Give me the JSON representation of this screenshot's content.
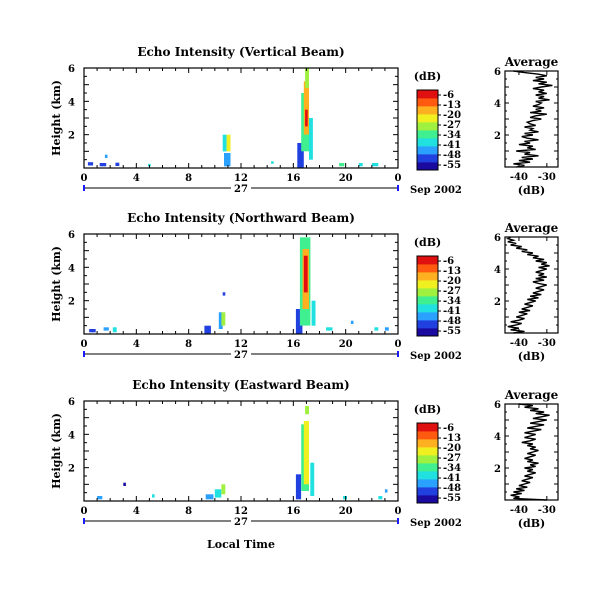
{
  "panels": [
    {
      "title": "Echo Intensity (Vertical Beam)",
      "ylabel": "Height (km)",
      "yticks": [
        "2",
        "4",
        "6"
      ],
      "xticks": [
        "0",
        "4",
        "8",
        "12",
        "16",
        "20",
        "0"
      ],
      "date_day": "27",
      "date_month": "Sep 2002",
      "colorbar_unit": "(dB)",
      "colorbar_ticks": [
        "-6",
        "-13",
        "-20",
        "-27",
        "-34",
        "-41",
        "-48",
        "-55"
      ],
      "avg_title": "Average",
      "avg_yticks": [
        "2",
        "4",
        "6"
      ],
      "avg_xticks": [
        "-40",
        "-30"
      ],
      "avg_xlabel": "(dB)"
    },
    {
      "title": "Echo Intensity (Northward Beam)",
      "ylabel": "Height (km)",
      "yticks": [
        "2",
        "4",
        "6"
      ],
      "xticks": [
        "0",
        "4",
        "8",
        "12",
        "16",
        "20",
        "0"
      ],
      "date_day": "27",
      "date_month": "Sep 2002",
      "colorbar_unit": "(dB)",
      "colorbar_ticks": [
        "-6",
        "-13",
        "-20",
        "-27",
        "-34",
        "-41",
        "-48",
        "-55"
      ],
      "avg_title": "Average",
      "avg_yticks": [
        "2",
        "4",
        "6"
      ],
      "avg_xticks": [
        "-40",
        "-30"
      ],
      "avg_xlabel": "(dB)"
    },
    {
      "title": "Echo Intensity (Eastward Beam)",
      "ylabel": "Height (km)",
      "yticks": [
        "2",
        "4",
        "6"
      ],
      "xticks": [
        "0",
        "4",
        "8",
        "12",
        "16",
        "20",
        "0"
      ],
      "date_day": "27",
      "date_month": "Sep 2002",
      "colorbar_unit": "(dB)",
      "colorbar_ticks": [
        "-6",
        "-13",
        "-20",
        "-27",
        "-34",
        "-41",
        "-48",
        "-55"
      ],
      "avg_title": "Average",
      "avg_yticks": [
        "2",
        "4",
        "6"
      ],
      "avg_xticks": [
        "-40",
        "-30"
      ],
      "avg_xlabel": "(dB)"
    }
  ],
  "xlabel": "Local Time",
  "colormap": [
    "#1a0aa0",
    "#2040e0",
    "#2aa0ff",
    "#20e0e0",
    "#40f090",
    "#a0f040",
    "#f0f020",
    "#ffb020",
    "#ff5a10",
    "#e01010"
  ],
  "chart_data": [
    {
      "type": "heatmap",
      "title": "Echo Intensity (Vertical Beam)",
      "xlabel": "Local Time",
      "ylabel": "Height (km)",
      "xlim": [
        0,
        24
      ],
      "ylim": [
        0,
        6
      ],
      "clim": [
        -55,
        -6
      ],
      "z_unit": "dB",
      "cells": [
        {
          "x": 0.3,
          "y": 0.15,
          "dx": 0.4,
          "dy": 0.2,
          "v": -50
        },
        {
          "x": 1.2,
          "y": 0.1,
          "dx": 0.5,
          "dy": 0.2,
          "v": -48
        },
        {
          "x": 1.6,
          "y": 0.6,
          "dx": 0.2,
          "dy": 0.2,
          "v": -42
        },
        {
          "x": 2.4,
          "y": 0.12,
          "dx": 0.3,
          "dy": 0.2,
          "v": -46
        },
        {
          "x": 4.9,
          "y": 0.1,
          "dx": 0.2,
          "dy": 0.15,
          "v": -36
        },
        {
          "x": 10.6,
          "y": 1.0,
          "dx": 0.3,
          "dy": 1.0,
          "v": -40
        },
        {
          "x": 10.9,
          "y": 1.0,
          "dx": 0.3,
          "dy": 1.0,
          "v": -22
        },
        {
          "x": 10.7,
          "y": 0.1,
          "dx": 0.5,
          "dy": 0.8,
          "v": -45
        },
        {
          "x": 14.3,
          "y": 0.25,
          "dx": 0.2,
          "dy": 0.15,
          "v": -40
        },
        {
          "x": 16.3,
          "y": 0.0,
          "dx": 0.5,
          "dy": 1.5,
          "v": -50
        },
        {
          "x": 16.6,
          "y": 1.0,
          "dx": 0.6,
          "dy": 3.5,
          "v": -32
        },
        {
          "x": 16.8,
          "y": 2.0,
          "dx": 0.4,
          "dy": 3.2,
          "v": -18
        },
        {
          "x": 16.9,
          "y": 4.8,
          "dx": 0.3,
          "dy": 1.2,
          "v": -28
        },
        {
          "x": 16.9,
          "y": 2.5,
          "dx": 0.2,
          "dy": 1.0,
          "v": -9
        },
        {
          "x": 17.2,
          "y": 0.5,
          "dx": 0.3,
          "dy": 2.5,
          "v": -38
        },
        {
          "x": 19.5,
          "y": 0.1,
          "dx": 0.4,
          "dy": 0.2,
          "v": -34
        },
        {
          "x": 21.0,
          "y": 0.1,
          "dx": 0.3,
          "dy": 0.2,
          "v": -40
        },
        {
          "x": 22.0,
          "y": 0.1,
          "dx": 0.5,
          "dy": 0.2,
          "v": -36
        }
      ]
    },
    {
      "type": "heatmap",
      "title": "Echo Intensity (Northward Beam)",
      "xlabel": "Local Time",
      "ylabel": "Height (km)",
      "xlim": [
        0,
        24
      ],
      "ylim": [
        0,
        6
      ],
      "clim": [
        -55,
        -6
      ],
      "z_unit": "dB",
      "cells": [
        {
          "x": 0.4,
          "y": 0.1,
          "dx": 0.5,
          "dy": 0.2,
          "v": -48
        },
        {
          "x": 1.5,
          "y": 0.2,
          "dx": 0.4,
          "dy": 0.2,
          "v": -42
        },
        {
          "x": 2.2,
          "y": 0.1,
          "dx": 0.3,
          "dy": 0.3,
          "v": -38
        },
        {
          "x": 9.2,
          "y": 0.0,
          "dx": 0.5,
          "dy": 0.5,
          "v": -50
        },
        {
          "x": 10.3,
          "y": 0.3,
          "dx": 0.3,
          "dy": 1.0,
          "v": -45
        },
        {
          "x": 10.5,
          "y": 0.5,
          "dx": 0.3,
          "dy": 0.8,
          "v": -30
        },
        {
          "x": 10.6,
          "y": 2.3,
          "dx": 0.2,
          "dy": 0.2,
          "v": -48
        },
        {
          "x": 16.2,
          "y": 0.0,
          "dx": 0.5,
          "dy": 1.5,
          "v": -48
        },
        {
          "x": 16.5,
          "y": 0.5,
          "dx": 0.8,
          "dy": 5.3,
          "v": -34
        },
        {
          "x": 16.7,
          "y": 1.5,
          "dx": 0.5,
          "dy": 3.6,
          "v": -20
        },
        {
          "x": 16.8,
          "y": 2.5,
          "dx": 0.3,
          "dy": 2.2,
          "v": -10
        },
        {
          "x": 17.4,
          "y": 0.5,
          "dx": 0.3,
          "dy": 1.5,
          "v": -38
        },
        {
          "x": 18.5,
          "y": 0.2,
          "dx": 0.5,
          "dy": 0.2,
          "v": -40
        },
        {
          "x": 20.4,
          "y": 0.6,
          "dx": 0.2,
          "dy": 0.2,
          "v": -44
        },
        {
          "x": 22.2,
          "y": 0.2,
          "dx": 0.3,
          "dy": 0.2,
          "v": -36
        },
        {
          "x": 23.0,
          "y": 0.2,
          "dx": 0.3,
          "dy": 0.2,
          "v": -42
        }
      ]
    },
    {
      "type": "heatmap",
      "title": "Echo Intensity (Eastward Beam)",
      "xlabel": "Local Time",
      "ylabel": "Height (km)",
      "xlim": [
        0,
        24
      ],
      "ylim": [
        0,
        6
      ],
      "clim": [
        -55,
        -6
      ],
      "z_unit": "dB",
      "cells": [
        {
          "x": 1.0,
          "y": 0.1,
          "dx": 0.4,
          "dy": 0.2,
          "v": -44
        },
        {
          "x": 3.0,
          "y": 0.9,
          "dx": 0.2,
          "dy": 0.2,
          "v": -52
        },
        {
          "x": 5.2,
          "y": 0.2,
          "dx": 0.2,
          "dy": 0.2,
          "v": -36
        },
        {
          "x": 9.3,
          "y": 0.1,
          "dx": 0.6,
          "dy": 0.3,
          "v": -44
        },
        {
          "x": 10.0,
          "y": 0.2,
          "dx": 0.5,
          "dy": 0.5,
          "v": -38
        },
        {
          "x": 10.5,
          "y": 0.4,
          "dx": 0.3,
          "dy": 0.6,
          "v": -30
        },
        {
          "x": 16.2,
          "y": 0.1,
          "dx": 0.4,
          "dy": 1.5,
          "v": -50
        },
        {
          "x": 16.6,
          "y": 0.6,
          "dx": 0.6,
          "dy": 4.0,
          "v": -34
        },
        {
          "x": 16.8,
          "y": 1.0,
          "dx": 0.4,
          "dy": 3.8,
          "v": -22
        },
        {
          "x": 16.9,
          "y": 5.2,
          "dx": 0.3,
          "dy": 0.5,
          "v": -30
        },
        {
          "x": 17.3,
          "y": 0.3,
          "dx": 0.3,
          "dy": 2.0,
          "v": -40
        },
        {
          "x": 19.8,
          "y": 0.1,
          "dx": 0.3,
          "dy": 0.2,
          "v": -40
        },
        {
          "x": 22.5,
          "y": 0.1,
          "dx": 0.3,
          "dy": 0.2,
          "v": -38
        },
        {
          "x": 23.0,
          "y": 0.5,
          "dx": 0.2,
          "dy": 0.2,
          "v": -42
        }
      ]
    },
    {
      "type": "line",
      "title": "Average",
      "xlabel": "(dB)",
      "ylabel": "",
      "xlim": [
        -45,
        -26
      ],
      "ylim": [
        0,
        6
      ],
      "series": [
        {
          "x": [
            -41,
            -38,
            -42,
            -36,
            -40,
            -35,
            -39,
            -33,
            -38,
            -36,
            -41,
            -34,
            -37,
            -35,
            -40,
            -36,
            -38,
            -33,
            -37,
            -39,
            -35,
            -38,
            -33,
            -36,
            -35,
            -38,
            -34,
            -36,
            -37,
            -35,
            -32,
            -36,
            -34,
            -30,
            -36,
            -32,
            -34,
            -31,
            -35,
            -33,
            -32,
            -34,
            -29,
            -33,
            -31,
            -34,
            -30,
            -33,
            -31,
            -35,
            -32,
            -28,
            -33,
            -30,
            -35,
            -31,
            -34,
            -30,
            -33,
            -38,
            -42
          ],
          "y": [
            0.0,
            0.1,
            0.2,
            0.3,
            0.4,
            0.5,
            0.6,
            0.7,
            0.8,
            0.9,
            1.0,
            1.1,
            1.2,
            1.3,
            1.4,
            1.5,
            1.6,
            1.7,
            1.8,
            1.9,
            2.0,
            2.1,
            2.2,
            2.3,
            2.4,
            2.5,
            2.6,
            2.7,
            2.8,
            2.9,
            3.0,
            3.1,
            3.2,
            3.3,
            3.4,
            3.5,
            3.6,
            3.7,
            3.8,
            3.9,
            4.0,
            4.1,
            4.2,
            4.3,
            4.4,
            4.5,
            4.6,
            4.7,
            4.8,
            4.9,
            5.0,
            5.1,
            5.2,
            5.3,
            5.4,
            5.5,
            5.6,
            5.7,
            5.8,
            5.9,
            6.0
          ]
        }
      ]
    },
    {
      "type": "line",
      "title": "Average",
      "xlabel": "(dB)",
      "ylabel": "",
      "xlim": [
        -45,
        -26
      ],
      "ylim": [
        0,
        6
      ],
      "series": [
        {
          "x": [
            -42,
            -38,
            -43,
            -40,
            -44,
            -41,
            -39,
            -43,
            -40,
            -38,
            -41,
            -39,
            -37,
            -40,
            -36,
            -39,
            -37,
            -35,
            -38,
            -36,
            -34,
            -37,
            -33,
            -36,
            -32,
            -35,
            -33,
            -31,
            -34,
            -32,
            -30,
            -33,
            -35,
            -31,
            -34,
            -30,
            -33,
            -31,
            -34,
            -32,
            -30,
            -33,
            -29,
            -32,
            -30,
            -34,
            -31,
            -35,
            -33,
            -37,
            -35,
            -39,
            -37,
            -41,
            -39,
            -43,
            -41,
            -44,
            -42,
            -44,
            -43
          ],
          "y": [
            0.0,
            0.1,
            0.2,
            0.3,
            0.4,
            0.5,
            0.6,
            0.7,
            0.8,
            0.9,
            1.0,
            1.1,
            1.2,
            1.3,
            1.4,
            1.5,
            1.6,
            1.7,
            1.8,
            1.9,
            2.0,
            2.1,
            2.2,
            2.3,
            2.4,
            2.5,
            2.6,
            2.7,
            2.8,
            2.9,
            3.0,
            3.1,
            3.2,
            3.3,
            3.4,
            3.5,
            3.6,
            3.7,
            3.8,
            3.9,
            4.0,
            4.1,
            4.2,
            4.3,
            4.4,
            4.5,
            4.6,
            4.7,
            4.8,
            4.9,
            5.0,
            5.1,
            5.2,
            5.3,
            5.4,
            5.5,
            5.6,
            5.7,
            5.8,
            5.9,
            6.0
          ]
        }
      ]
    },
    {
      "type": "line",
      "title": "Average",
      "xlabel": "(dB)",
      "ylabel": "",
      "xlim": [
        -45,
        -26
      ],
      "ylim": [
        0,
        6
      ],
      "series": [
        {
          "x": [
            -30,
            -42,
            -40,
            -43,
            -39,
            -42,
            -38,
            -41,
            -37,
            -40,
            -38,
            -36,
            -39,
            -37,
            -35,
            -38,
            -36,
            -34,
            -37,
            -35,
            -38,
            -34,
            -36,
            -33,
            -37,
            -35,
            -38,
            -36,
            -34,
            -37,
            -35,
            -33,
            -36,
            -34,
            -37,
            -35,
            -39,
            -36,
            -34,
            -38,
            -36,
            -34,
            -38,
            -35,
            -32,
            -37,
            -34,
            -31,
            -36,
            -33,
            -30,
            -35,
            -32,
            -29,
            -34,
            -31,
            -36,
            -33,
            -38,
            -35,
            -40
          ],
          "y": [
            0.0,
            0.1,
            0.2,
            0.3,
            0.4,
            0.5,
            0.6,
            0.7,
            0.8,
            0.9,
            1.0,
            1.1,
            1.2,
            1.3,
            1.4,
            1.5,
            1.6,
            1.7,
            1.8,
            1.9,
            2.0,
            2.1,
            2.2,
            2.3,
            2.4,
            2.5,
            2.6,
            2.7,
            2.8,
            2.9,
            3.0,
            3.1,
            3.2,
            3.3,
            3.4,
            3.5,
            3.6,
            3.7,
            3.8,
            3.9,
            4.0,
            4.1,
            4.2,
            4.3,
            4.4,
            4.5,
            4.6,
            4.7,
            4.8,
            4.9,
            5.0,
            5.1,
            5.2,
            5.3,
            5.4,
            5.5,
            5.6,
            5.7,
            5.8,
            5.9,
            6.0
          ]
        }
      ]
    }
  ]
}
